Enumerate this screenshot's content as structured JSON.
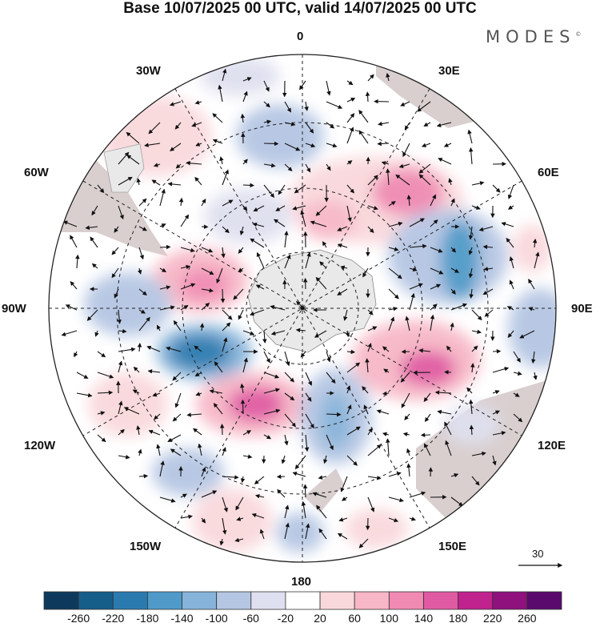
{
  "title": "Base 10/07/2025 00 UTC, valid 14/07/2025 00 UTC",
  "brand": "MODES",
  "brand_mark": "©",
  "longitude_labels": {
    "lon0": "0",
    "lon30e": "30E",
    "lon60e": "60E",
    "lon90e": "90E",
    "lon120e": "120E",
    "lon150e": "150E",
    "lon180": "180",
    "lon150w": "150W",
    "lon120w": "120W",
    "lon90w": "90W",
    "lon60w": "60W",
    "lon30w": "30W"
  },
  "reference_vector": "30",
  "colorbar": {
    "ticks": [
      "-260",
      "-220",
      "-180",
      "-140",
      "-100",
      "-60",
      "-20",
      "20",
      "60",
      "100",
      "140",
      "180",
      "220",
      "260"
    ],
    "colors": [
      "#0d3a5c",
      "#155e8a",
      "#2a7ab0",
      "#4f9ac8",
      "#86b3d9",
      "#b5c6e3",
      "#dfe0ef",
      "#ffffff",
      "#f9d8dc",
      "#f7b7c6",
      "#f08ab2",
      "#e05aa3",
      "#c0228e",
      "#8e117d",
      "#5a0a6c"
    ]
  },
  "map": {
    "land_color": "#d9cfcf",
    "ice_color": "#e9e9e9",
    "grid_color": "#222222",
    "arrow_color": "#111111"
  }
}
